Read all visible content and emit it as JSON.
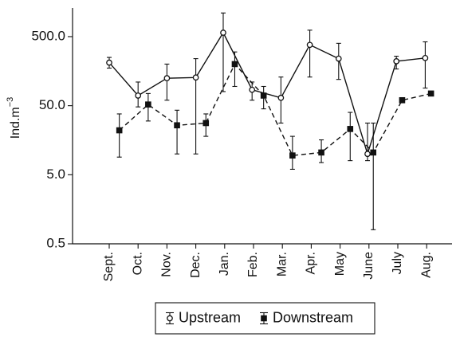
{
  "chart_data": {
    "type": "line",
    "title": "",
    "xlabel": "",
    "ylabel": "Ind.m",
    "ylabel_superscript": "−3",
    "y_scale": "log",
    "ylim": [
      0.5,
      1300
    ],
    "y_ticks": [
      0.5,
      5.0,
      50.0,
      500.0
    ],
    "y_tick_labels": [
      "0.5",
      "5.0",
      "50.0",
      "500.0"
    ],
    "grid": false,
    "legend": {
      "placement": "bottom-center",
      "entries": [
        "Upstream",
        "Downstream"
      ]
    },
    "categories": [
      "Sept.",
      "Oct.",
      "Nov.",
      "Dec.",
      "Jan.",
      "Feb.",
      "Mar.",
      "Apr.",
      "May",
      "June",
      "July",
      "Aug."
    ],
    "series": [
      {
        "name": "Upstream",
        "marker": "open-circle",
        "line": "solid",
        "points": [
          {
            "x": 0.0,
            "y": 210,
            "lo": 175,
            "hi": 250
          },
          {
            "x": 1.0,
            "y": 70,
            "lo": 48,
            "hi": 110
          },
          {
            "x": 2.0,
            "y": 125,
            "lo": 60,
            "hi": 200
          },
          {
            "x": 3.0,
            "y": 128,
            "lo": 10,
            "hi": 240
          },
          {
            "x": 3.95,
            "y": 570,
            "lo": 80,
            "hi": 1100
          },
          {
            "x": 4.95,
            "y": 85,
            "lo": 60,
            "hi": 110
          },
          {
            "x": 5.95,
            "y": 65,
            "lo": 28,
            "hi": 130
          },
          {
            "x": 6.95,
            "y": 380,
            "lo": 130,
            "hi": 620
          },
          {
            "x": 7.95,
            "y": 240,
            "lo": 120,
            "hi": 400
          },
          {
            "x": 8.95,
            "y": 10,
            "lo": 8,
            "hi": 28
          },
          {
            "x": 9.95,
            "y": 220,
            "lo": 170,
            "hi": 260
          },
          {
            "x": 10.95,
            "y": 245,
            "lo": 90,
            "hi": 420
          }
        ]
      },
      {
        "name": "Downstream",
        "marker": "filled-square",
        "line": "dashed",
        "points": [
          {
            "x": 0.35,
            "y": 22,
            "lo": 9,
            "hi": 38
          },
          {
            "x": 1.35,
            "y": 52,
            "lo": 30,
            "hi": 75
          },
          {
            "x": 2.35,
            "y": 26,
            "lo": 10,
            "hi": 43
          },
          {
            "x": 3.35,
            "y": 28,
            "lo": 18,
            "hi": 38
          },
          {
            "x": 4.35,
            "y": 200,
            "lo": 95,
            "hi": 300
          },
          {
            "x": 5.35,
            "y": 70,
            "lo": 45,
            "hi": 95
          },
          {
            "x": 6.35,
            "y": 9.5,
            "lo": 6,
            "hi": 18
          },
          {
            "x": 7.35,
            "y": 10.5,
            "lo": 7.5,
            "hi": 16
          },
          {
            "x": 8.35,
            "y": 23,
            "lo": 8,
            "hi": 40
          },
          {
            "x": 9.15,
            "y": 10.5,
            "lo": 0.8,
            "hi": 28
          },
          {
            "x": 10.15,
            "y": 60,
            "lo": 60,
            "hi": 60
          },
          {
            "x": 11.15,
            "y": 75,
            "lo": 75,
            "hi": 75
          }
        ]
      }
    ]
  }
}
